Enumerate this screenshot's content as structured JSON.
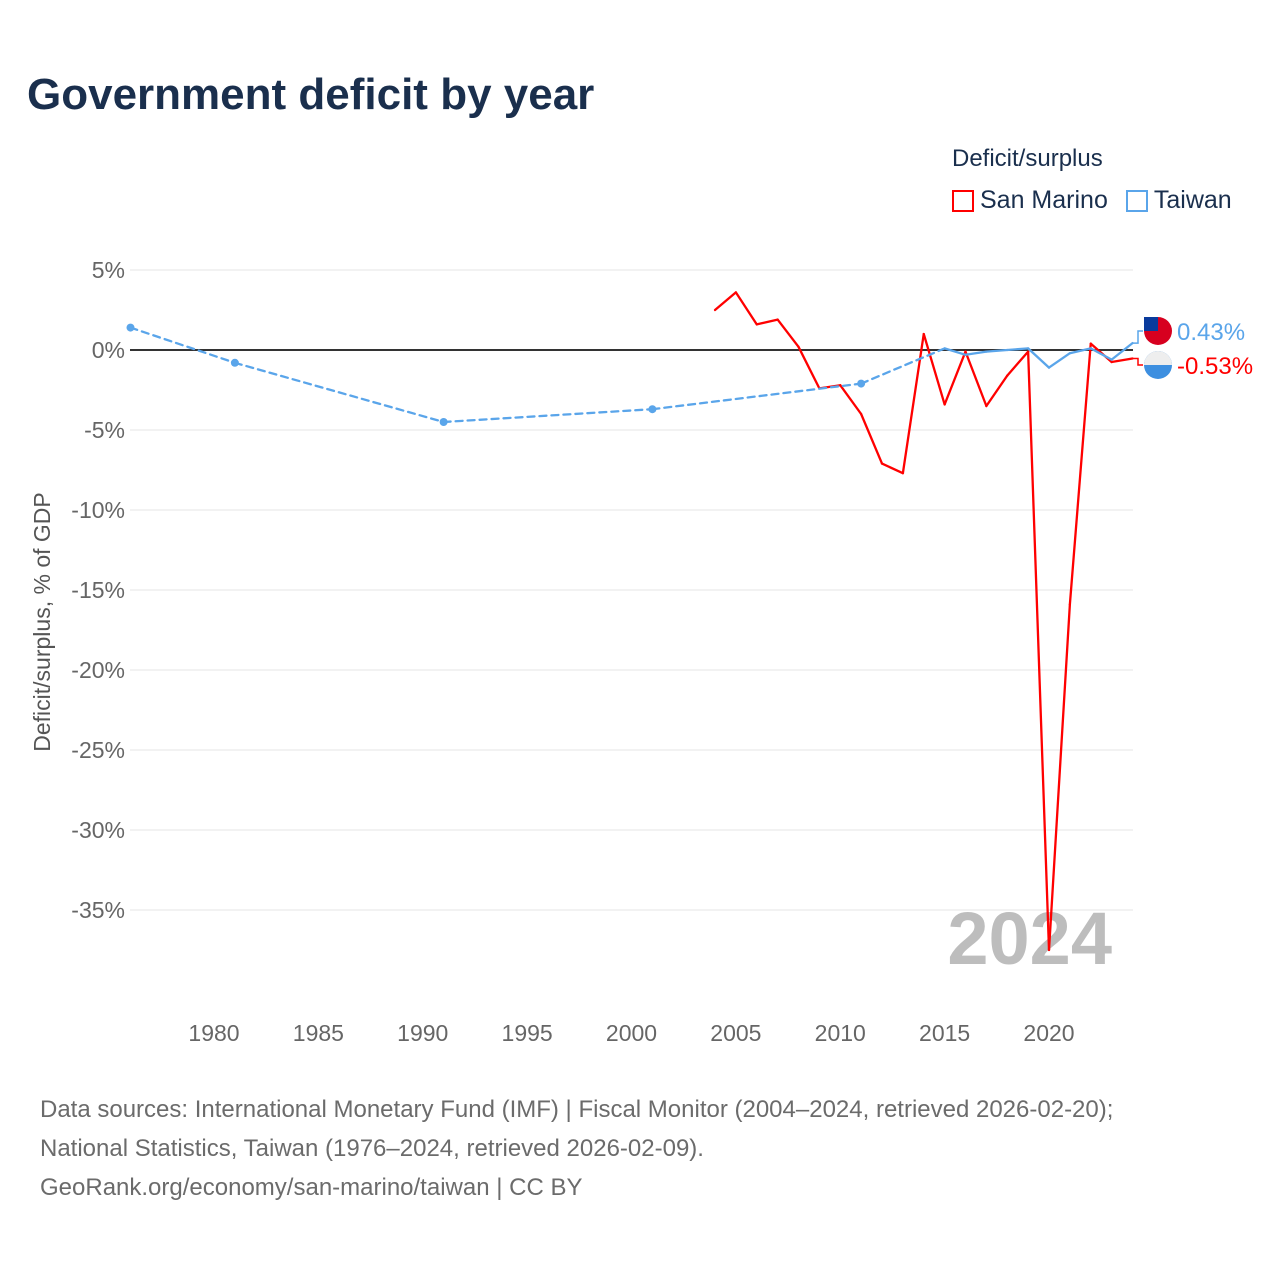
{
  "chart_data": {
    "type": "line",
    "title": "Government deficit by year",
    "ylabel": "Deficit/surplus, % of GDP",
    "xlabel": "",
    "legend_title": "Deficit/surplus",
    "legend_placement": "top-right",
    "ylim": [
      -39,
      6
    ],
    "xlim": [
      1976,
      2024
    ],
    "yticks": [
      5,
      0,
      -5,
      -10,
      -15,
      -20,
      -25,
      -30,
      -35
    ],
    "ytick_labels": [
      "5%",
      "0%",
      "-5%",
      "-10%",
      "-15%",
      "-20%",
      "-25%",
      "-30%",
      "-35%"
    ],
    "xticks": [
      1980,
      1985,
      1990,
      1995,
      2000,
      2005,
      2010,
      2015,
      2020
    ],
    "xtick_labels": [
      "1980",
      "1985",
      "1990",
      "1995",
      "2000",
      "2005",
      "2010",
      "2015",
      "2020"
    ],
    "year_label": "2024",
    "series": [
      {
        "name": "San Marino",
        "color": "#ff0000",
        "end_label": "-0.53%",
        "x": [
          2004,
          2005,
          2006,
          2007,
          2008,
          2009,
          2010,
          2011,
          2012,
          2013,
          2014,
          2015,
          2016,
          2017,
          2018,
          2019,
          2020,
          2021,
          2022,
          2023,
          2024
        ],
        "y": [
          2.5,
          3.6,
          1.6,
          1.9,
          0.2,
          -2.4,
          -2.2,
          -4.0,
          -7.1,
          -7.7,
          1.0,
          -3.4,
          -0.1,
          -3.5,
          -1.6,
          -0.1,
          -37.5,
          -15.9,
          0.4,
          -0.75,
          -0.53
        ]
      },
      {
        "name": "Taiwan",
        "color": "#5aa5ea",
        "end_label": "0.43%",
        "x": [
          1976,
          1981,
          1991,
          2001,
          2011,
          2015,
          2016,
          2017,
          2018,
          2019,
          2020,
          2021,
          2022,
          2023,
          2024
        ],
        "y": [
          1.4,
          -0.8,
          -4.5,
          -3.7,
          -2.1,
          0.1,
          -0.3,
          -0.1,
          0.0,
          0.1,
          -1.1,
          -0.2,
          0.1,
          -0.6,
          0.43
        ]
      }
    ]
  },
  "footer": [
    "Data sources: International Monetary Fund (IMF) | Fiscal Monitor (2004–2024, retrieved 2026-02-20);",
    "National Statistics, Taiwan (1976–2024, retrieved 2026-02-09).",
    "GeoRank.org/economy/san-marino/taiwan | CC BY"
  ]
}
